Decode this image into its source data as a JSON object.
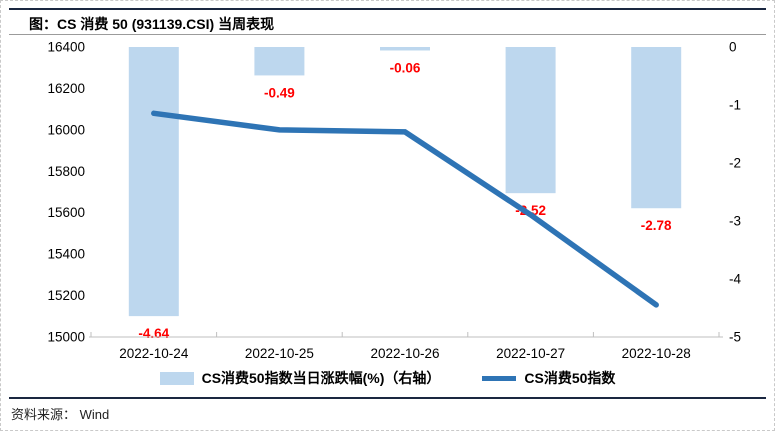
{
  "figure": {
    "title": "图：CS 消费 50  (931139.CSI)  当周表现",
    "source_label": "资料来源：",
    "source_value": "Wind",
    "rule_color": "#1a2740"
  },
  "chart_data": {
    "type": "bar",
    "subtype": "bar-line-combo",
    "title": "CS 消费 50 (931139.CSI) 当周表现",
    "categories": [
      "2022-10-24",
      "2022-10-25",
      "2022-10-26",
      "2022-10-27",
      "2022-10-28"
    ],
    "series": [
      {
        "name": "CS消费50指数当日涨跌幅(%)（右轴）",
        "type": "bar",
        "axis": "right",
        "values": [
          -4.64,
          -0.49,
          -0.06,
          -2.52,
          -2.78
        ],
        "labels": [
          "-4.64",
          "-0.49",
          "-0.06",
          "-2.52",
          "-2.78"
        ],
        "color": "#BDD7EE",
        "label_color": "#FF0000"
      },
      {
        "name": "CS消费50指数",
        "type": "line",
        "axis": "left",
        "values": [
          16080,
          16000,
          15990,
          15590,
          15155
        ],
        "color": "#2E74B5"
      }
    ],
    "left_axis": {
      "min": 15000,
      "max": 16400,
      "step": 200,
      "ticks": [
        16400,
        16200,
        16000,
        15800,
        15600,
        15400,
        15200,
        15000
      ]
    },
    "right_axis": {
      "min": -5,
      "max": 0,
      "step": 1,
      "ticks": [
        0,
        -1,
        -2,
        -3,
        -4,
        -5
      ]
    },
    "grid": false,
    "legend_position": "bottom",
    "axis_line_color": "#bfbfbf",
    "tick_label_color": "#000000"
  }
}
